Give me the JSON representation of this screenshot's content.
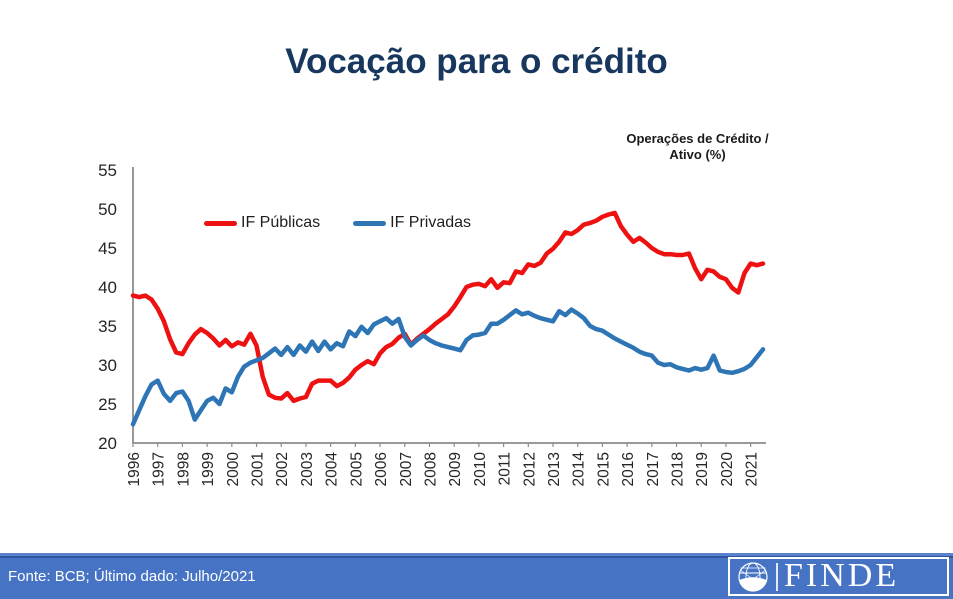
{
  "title": "Vocação para o crédito",
  "annotation": {
    "line1": "Operações de Crédito /",
    "line2": "Ativo (%)"
  },
  "legend": [
    {
      "label": "IF Públicas",
      "color": "#ee1111"
    },
    {
      "label": "IF Privadas",
      "color": "#2e75b6"
    }
  ],
  "footer": {
    "source": "Fonte: BCB; Último dado: Julho/2021",
    "logo_text": "FINDE"
  },
  "colors": {
    "title": "#17375e",
    "axis": "#8c8c8c",
    "tick_text": "#262626",
    "footer_band": "#4673c4",
    "red_series": "#ee1111",
    "blue_series": "#2e75b6"
  },
  "chart_data": {
    "type": "line",
    "title": "Vocação para o crédito",
    "ylabel_annotation": "Operações de Crédito / Ativo (%)",
    "x_start": 1996.0,
    "x_step": 0.25,
    "x_end": 2021.5,
    "x_tick_labels": [
      "1996",
      "1997",
      "1998",
      "1999",
      "2000",
      "2001",
      "2002",
      "2003",
      "2004",
      "2005",
      "2006",
      "2007",
      "2008",
      "2009",
      "2010",
      "2011",
      "2012",
      "2013",
      "2014",
      "2015",
      "2016",
      "2017",
      "2018",
      "2019",
      "2020",
      "2021"
    ],
    "y_ticks": [
      20,
      25,
      30,
      35,
      40,
      45,
      50,
      55
    ],
    "ylim": [
      20,
      55
    ],
    "grid": false,
    "legend_position": "top-left-inside",
    "series": [
      {
        "name": "IF Públicas",
        "color": "#ee1111",
        "values": [
          38.9,
          38.7,
          38.9,
          38.4,
          37.2,
          35.6,
          33.3,
          31.6,
          31.4,
          32.8,
          33.9,
          34.6,
          34.1,
          33.4,
          32.5,
          33.2,
          32.4,
          32.9,
          32.6,
          34.0,
          32.5,
          28.5,
          26.2,
          25.8,
          25.7,
          26.4,
          25.4,
          25.7,
          25.9,
          27.6,
          28.0,
          28.0,
          28.0,
          27.3,
          27.7,
          28.4,
          29.4,
          30.0,
          30.5,
          30.1,
          31.5,
          32.3,
          32.7,
          33.5,
          34.0,
          32.6,
          33.4,
          34.0,
          34.6,
          35.3,
          35.9,
          36.5,
          37.5,
          38.7,
          40.0,
          40.3,
          40.4,
          40.1,
          41.0,
          39.9,
          40.6,
          40.5,
          42.0,
          41.8,
          42.9,
          42.7,
          43.1,
          44.3,
          44.9,
          45.8,
          47.0,
          46.8,
          47.3,
          48.0,
          48.2,
          48.5,
          49.0,
          49.3,
          49.5,
          47.8,
          46.7,
          45.8,
          46.3,
          45.7,
          45.0,
          44.5,
          44.2,
          44.2,
          44.1,
          44.1,
          44.3,
          42.4,
          41.0,
          42.2,
          42.0,
          41.3,
          41.0,
          39.9,
          39.3,
          41.8,
          43.0,
          42.8,
          43.0
        ]
      },
      {
        "name": "IF Privadas",
        "color": "#2e75b6",
        "values": [
          22.4,
          24.2,
          26.0,
          27.5,
          28.0,
          26.3,
          25.4,
          26.4,
          26.6,
          25.4,
          23.0,
          24.2,
          25.4,
          25.8,
          25.0,
          27.0,
          26.5,
          28.5,
          29.8,
          30.3,
          30.6,
          30.9,
          31.5,
          32.1,
          31.3,
          32.3,
          31.3,
          32.5,
          31.7,
          33.0,
          31.8,
          33.0,
          32.0,
          32.8,
          32.4,
          34.3,
          33.7,
          34.9,
          34.1,
          35.2,
          35.6,
          36.0,
          35.3,
          35.9,
          33.6,
          32.5,
          33.2,
          33.8,
          33.2,
          32.8,
          32.5,
          32.3,
          32.1,
          31.9,
          33.2,
          33.8,
          33.9,
          34.1,
          35.3,
          35.3,
          35.8,
          36.4,
          37.0,
          36.5,
          36.7,
          36.3,
          36.0,
          35.8,
          35.6,
          36.9,
          36.4,
          37.1,
          36.6,
          36.0,
          35.0,
          34.6,
          34.4,
          33.9,
          33.4,
          33.0,
          32.6,
          32.2,
          31.7,
          31.4,
          31.2,
          30.3,
          30.0,
          30.1,
          29.7,
          29.5,
          29.3,
          29.6,
          29.4,
          29.6,
          31.2,
          29.3,
          29.1,
          29.0,
          29.2,
          29.5,
          30.0,
          31.0,
          32.0
        ]
      }
    ]
  }
}
